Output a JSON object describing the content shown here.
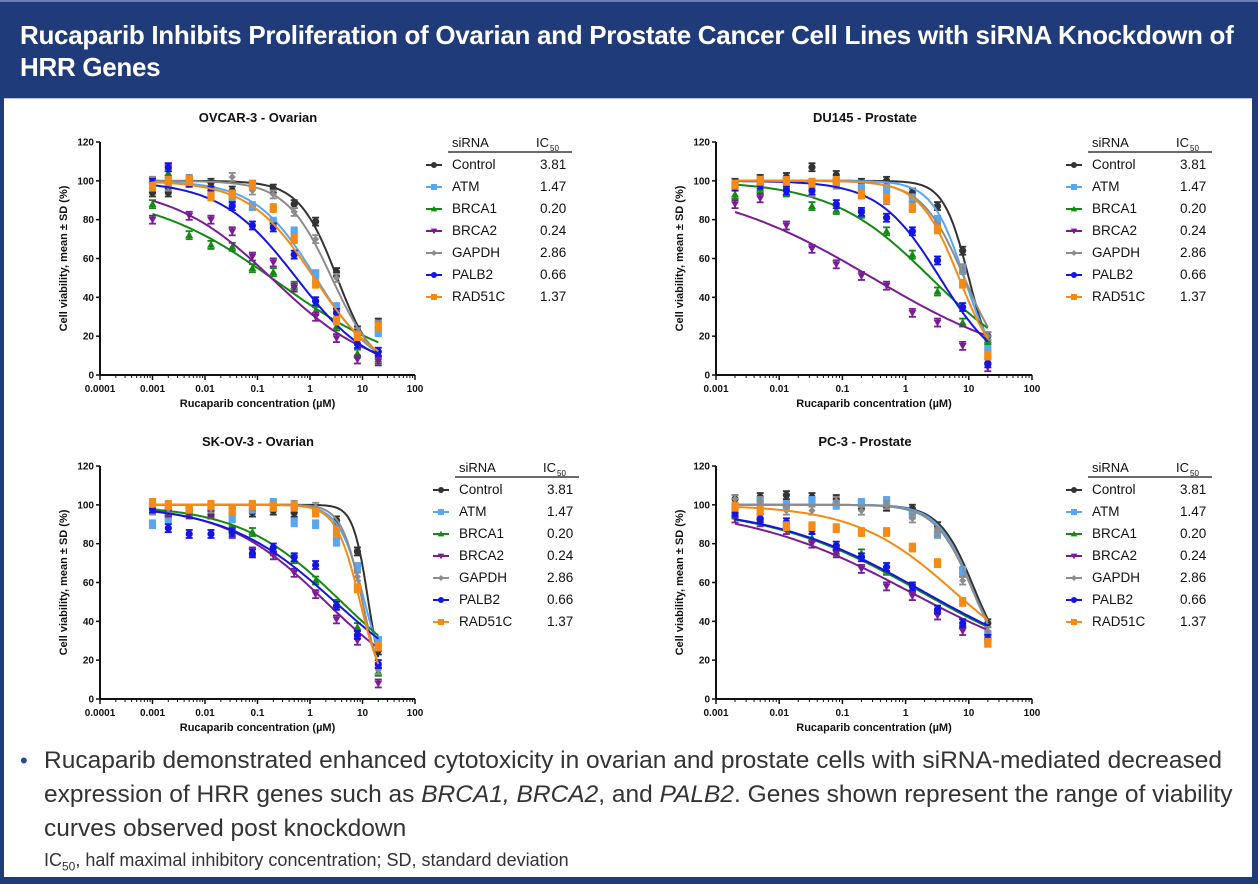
{
  "header": {
    "title": "Rucaparib Inhibits Proliferation of Ovarian and Prostate Cancer Cell Lines with siRNA Knockdown of HRR Genes"
  },
  "legend": {
    "col_sirna": "siRNA",
    "col_ic50": "IC",
    "col_ic50_sub": "50",
    "entries": [
      {
        "name": "Control",
        "ic50": "3.81",
        "color": "#333333",
        "marker": "circle"
      },
      {
        "name": "ATM",
        "ic50": "1.47",
        "color": "#5aa6f0",
        "marker": "square"
      },
      {
        "name": "BRCA1",
        "ic50": "0.20",
        "color": "#138a13",
        "marker": "triangle-up"
      },
      {
        "name": "BRCA2",
        "ic50": "0.24",
        "color": "#7a1c96",
        "marker": "triangle-down"
      },
      {
        "name": "GAPDH",
        "ic50": "2.86",
        "color": "#8c8c8c",
        "marker": "diamond"
      },
      {
        "name": "PALB2",
        "ic50": "0.66",
        "color": "#1414e6",
        "marker": "circle"
      },
      {
        "name": "RAD51C",
        "ic50": "1.37",
        "color": "#f58a14",
        "marker": "square"
      }
    ]
  },
  "chart_data": [
    {
      "type": "scatter",
      "title": "OVCAR-3 - Ovarian",
      "xlabel": "Rucaparib concentration (µM)",
      "ylabel": "Cell viability, mean ± SD (%)",
      "xscale": "log",
      "xlim": [
        0.0001,
        100
      ],
      "ylim": [
        0,
        120
      ],
      "xticks": [
        "0.0001",
        "0.001",
        "0.01",
        "0.1",
        "1",
        "10",
        "100"
      ],
      "yticks": [
        "0",
        "20",
        "40",
        "60",
        "80",
        "100",
        "120"
      ],
      "x": [
        0.001,
        0.002,
        0.005,
        0.013,
        0.033,
        0.08,
        0.2,
        0.5,
        1.28,
        3.2,
        8,
        20
      ],
      "series": [
        {
          "name": "Control",
          "values": [
            94,
            94,
            100,
            99,
            95,
            98,
            96,
            88,
            79,
            53,
            23,
            27
          ],
          "fit": {
            "top": 100,
            "bottom": 0,
            "ec50": 3.3,
            "hill": 1.2
          }
        },
        {
          "name": "ATM",
          "values": [
            100,
            99,
            99,
            92,
            90,
            87,
            79,
            74,
            52,
            35,
            20,
            22
          ],
          "fit": {
            "top": 100,
            "bottom": 0,
            "ec50": 1.3,
            "hill": 0.75
          }
        },
        {
          "name": "BRCA1",
          "values": [
            88,
            104,
            72,
            67,
            66,
            55,
            53,
            46,
            33,
            25,
            11,
            8
          ],
          "fit": {
            "top": 95,
            "bottom": 0,
            "ec50": 0.25,
            "hill": 0.35
          }
        },
        {
          "name": "BRCA2",
          "values": [
            80,
            107,
            82,
            80,
            74,
            61,
            58,
            45,
            30,
            19,
            8,
            7
          ],
          "fit": {
            "top": 98,
            "bottom": 0,
            "ec50": 0.2,
            "hill": 0.45
          }
        },
        {
          "name": "GAPDH",
          "values": [
            100,
            97,
            101,
            94,
            102,
            95,
            93,
            84,
            70,
            50,
            22,
            26
          ],
          "fit": {
            "top": 100,
            "bottom": 0,
            "ec50": 2.6,
            "hill": 1.0
          }
        },
        {
          "name": "PALB2",
          "values": [
            99,
            107,
            99,
            95,
            87,
            77,
            76,
            62,
            38,
            32,
            16,
            12
          ],
          "fit": {
            "top": 100,
            "bottom": 0,
            "ec50": 0.55,
            "hill": 0.6
          }
        },
        {
          "name": "RAD51C",
          "values": [
            97,
            100,
            100,
            92,
            93,
            98,
            86,
            70,
            47,
            28,
            20,
            25
          ],
          "fit": {
            "top": 100,
            "bottom": 0,
            "ec50": 1.2,
            "hill": 0.7
          }
        }
      ]
    },
    {
      "type": "scatter",
      "title": "DU145 - Prostate",
      "xlabel": "Rucaparib concentration (µM)",
      "ylabel": "Cell viability, mean ± SD (%)",
      "xscale": "log",
      "xlim": [
        0.001,
        100
      ],
      "ylim": [
        0,
        120
      ],
      "xticks": [
        "0.001",
        "0.01",
        "0.1",
        "1",
        "10",
        "100"
      ],
      "yticks": [
        "0",
        "20",
        "40",
        "60",
        "80",
        "100",
        "120"
      ],
      "x": [
        0.002,
        0.005,
        0.013,
        0.033,
        0.08,
        0.2,
        0.5,
        1.28,
        3.2,
        8,
        20
      ],
      "series": [
        {
          "name": "Control",
          "values": [
            99,
            101,
            102,
            107,
            103,
            99,
            100,
            94,
            87,
            64,
            20
          ],
          "fit": {
            "top": 100,
            "bottom": 0,
            "ec50": 10,
            "hill": 2.2
          }
        },
        {
          "name": "ATM",
          "values": [
            98,
            100,
            100,
            99,
            99,
            96,
            96,
            91,
            80,
            54,
            14
          ],
          "fit": {
            "top": 100,
            "bottom": 0,
            "ec50": 8.5,
            "hill": 1.7
          }
        },
        {
          "name": "BRCA1",
          "values": [
            93,
            96,
            94,
            87,
            85,
            83,
            74,
            62,
            43,
            27,
            18
          ],
          "fit": {
            "top": 100,
            "bottom": 0,
            "ec50": 2.5,
            "hill": 0.55
          }
        },
        {
          "name": "BRCA2",
          "values": [
            88,
            91,
            77,
            65,
            57,
            51,
            46,
            32,
            27,
            15,
            4
          ],
          "fit": {
            "top": 100,
            "bottom": 0,
            "ec50": 0.3,
            "hill": 0.33
          }
        },
        {
          "name": "GAPDH",
          "values": [
            97,
            100,
            99,
            94,
            98,
            93,
            90,
            87,
            76,
            55,
            20
          ],
          "fit": {
            "top": 100,
            "bottom": 0,
            "ec50": 8.5,
            "hill": 1.3
          }
        },
        {
          "name": "PALB2",
          "values": [
            97,
            98,
            95,
            95,
            88,
            84,
            81,
            74,
            59,
            35,
            6
          ],
          "fit": {
            "top": 100,
            "bottom": 0,
            "ec50": 3.5,
            "hill": 0.9
          }
        },
        {
          "name": "RAD51C",
          "values": [
            98,
            100,
            100,
            99,
            100,
            93,
            91,
            86,
            75,
            47,
            10
          ],
          "fit": {
            "top": 100,
            "bottom": 0,
            "ec50": 7.0,
            "hill": 1.4
          }
        }
      ]
    },
    {
      "type": "scatter",
      "title": "SK-OV-3 - Ovarian",
      "xlabel": "Rucaparib concentration (µM)",
      "ylabel": "Cell viability, mean ± SD (%)",
      "xscale": "log",
      "xlim": [
        0.0001,
        100
      ],
      "ylim": [
        0,
        120
      ],
      "xticks": [
        "0.0001",
        "0.001",
        "0.01",
        "0.1",
        "1",
        "10",
        "100"
      ],
      "yticks": [
        "0",
        "20",
        "40",
        "60",
        "80",
        "100",
        "120"
      ],
      "x": [
        0.001,
        0.002,
        0.005,
        0.013,
        0.033,
        0.08,
        0.2,
        0.5,
        1.28,
        3.2,
        8,
        20
      ],
      "series": [
        {
          "name": "Control",
          "values": [
            101,
            97,
            97,
            95,
            98,
            96,
            97,
            96,
            96,
            92,
            76,
            25
          ],
          "fit": {
            "top": 100,
            "bottom": 0,
            "ec50": 13,
            "hill": 3.0
          }
        },
        {
          "name": "ATM",
          "values": [
            90,
            93,
            96,
            100,
            93,
            98,
            101,
            91,
            90,
            81,
            68,
            30
          ],
          "fit": {
            "top": 100,
            "bottom": 0,
            "ec50": 11,
            "hill": 1.8
          }
        },
        {
          "name": "BRCA1",
          "values": [
            100,
            96,
            96,
            98,
            87,
            86,
            76,
            72,
            61,
            49,
            37,
            14
          ],
          "fit": {
            "top": 100,
            "bottom": 0,
            "ec50": 4,
            "hill": 0.45
          }
        },
        {
          "name": "BRCA2",
          "values": [
            99,
            96,
            95,
            96,
            85,
            76,
            74,
            65,
            54,
            41,
            30,
            8
          ],
          "fit": {
            "top": 100,
            "bottom": 0,
            "ec50": 2,
            "hill": 0.45
          }
        },
        {
          "name": "GAPDH",
          "values": [
            97,
            98,
            98,
            98,
            97,
            99,
            99,
            100,
            99,
            87,
            63,
            15
          ],
          "fit": {
            "top": 100,
            "bottom": 0,
            "ec50": 10,
            "hill": 2.2
          }
        },
        {
          "name": "PALB2",
          "values": [
            98,
            88,
            85,
            85,
            86,
            75,
            78,
            73,
            69,
            48,
            33,
            18
          ],
          "fit": {
            "top": 100,
            "bottom": 0,
            "ec50": 3,
            "hill": 0.42
          }
        },
        {
          "name": "RAD51C",
          "values": [
            101,
            100,
            98,
            100,
            97,
            100,
            99,
            99,
            96,
            86,
            57,
            27
          ],
          "fit": {
            "top": 100,
            "bottom": 0,
            "ec50": 9,
            "hill": 1.9
          }
        }
      ]
    },
    {
      "type": "scatter",
      "title": "PC-3 - Prostate",
      "xlabel": "Rucaparib concentration (µM)",
      "ylabel": "Cell viability, mean ± SD (%)",
      "xscale": "log",
      "xlim": [
        0.001,
        100
      ],
      "ylim": [
        0,
        120
      ],
      "xticks": [
        "0.001",
        "0.01",
        "0.1",
        "1",
        "10",
        "100"
      ],
      "yticks": [
        "0",
        "20",
        "40",
        "60",
        "80",
        "100",
        "120"
      ],
      "x": [
        0.002,
        0.005,
        0.013,
        0.033,
        0.08,
        0.2,
        0.5,
        1.28,
        3.2,
        8,
        20
      ],
      "series": [
        {
          "name": "Control",
          "values": [
            103,
            104,
            105,
            104,
            103,
            100,
            99,
            98,
            89,
            65,
            39
          ],
          "fit": {
            "top": 100,
            "bottom": 15,
            "ec50": 12,
            "hill": 1.6
          }
        },
        {
          "name": "ATM",
          "values": [
            99,
            102,
            100,
            102,
            100,
            101,
            102,
            95,
            85,
            66,
            33
          ],
          "fit": {
            "top": 100,
            "bottom": 15,
            "ec50": 11,
            "hill": 1.6
          }
        },
        {
          "name": "BRCA1",
          "values": [
            95,
            93,
            89,
            83,
            76,
            75,
            66,
            57,
            46,
            39,
            31
          ],
          "fit": {
            "top": 100,
            "bottom": 10,
            "ec50": 1.8,
            "hill": 0.35
          }
        },
        {
          "name": "BRCA2",
          "values": [
            93,
            91,
            87,
            80,
            75,
            67,
            58,
            53,
            43,
            35,
            29
          ],
          "fit": {
            "top": 100,
            "bottom": 10,
            "ec50": 1.2,
            "hill": 0.33
          }
        },
        {
          "name": "GAPDH",
          "values": [
            103,
            102,
            97,
            97,
            102,
            97,
            100,
            93,
            86,
            61,
            35
          ],
          "fit": {
            "top": 100,
            "bottom": 15,
            "ec50": 11,
            "hill": 1.5
          }
        },
        {
          "name": "PALB2",
          "values": [
            96,
            93,
            91,
            87,
            79,
            73,
            68,
            58,
            46,
            39,
            31
          ],
          "fit": {
            "top": 100,
            "bottom": 10,
            "ec50": 2.0,
            "hill": 0.35
          }
        },
        {
          "name": "RAD51C",
          "values": [
            99,
            97,
            89,
            89,
            88,
            86,
            86,
            78,
            70,
            50,
            29
          ],
          "fit": {
            "top": 100,
            "bottom": 10,
            "ec50": 6,
            "hill": 0.55
          }
        }
      ]
    }
  ],
  "bullet": {
    "text_before": "Rucaparib demonstrated enhanced cytotoxicity in ovarian and prostate cells with siRNA-mediated decreased expression of HRR genes such as ",
    "gene1": "BRCA1,",
    "sep1": " ",
    "gene2": "BRCA2",
    "sep2": ", and ",
    "gene3": "PALB2",
    "text_after": ". Genes shown represent the range of viability curves observed post knockdown"
  },
  "footnote": {
    "ic": "IC",
    "sub": "50",
    "text": ", half maximal inhibitory concentration; SD, standard deviation"
  }
}
